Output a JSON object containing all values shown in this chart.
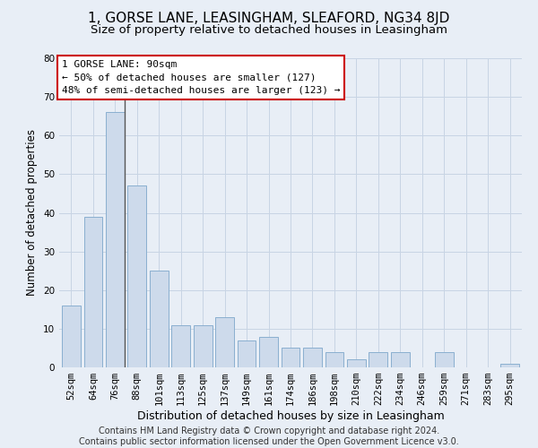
{
  "title": "1, GORSE LANE, LEASINGHAM, SLEAFORD, NG34 8JD",
  "subtitle": "Size of property relative to detached houses in Leasingham",
  "xlabel": "Distribution of detached houses by size in Leasingham",
  "ylabel": "Number of detached properties",
  "categories": [
    "52sqm",
    "64sqm",
    "76sqm",
    "88sqm",
    "101sqm",
    "113sqm",
    "125sqm",
    "137sqm",
    "149sqm",
    "161sqm",
    "174sqm",
    "186sqm",
    "198sqm",
    "210sqm",
    "222sqm",
    "234sqm",
    "246sqm",
    "259sqm",
    "271sqm",
    "283sqm",
    "295sqm"
  ],
  "values": [
    16,
    39,
    66,
    47,
    25,
    11,
    11,
    13,
    7,
    8,
    5,
    5,
    4,
    2,
    4,
    4,
    0,
    4,
    0,
    0,
    1
  ],
  "bar_color": "#cddaeb",
  "bar_edge_color": "#8aafd0",
  "highlight_index": 2,
  "highlight_line_color": "#555555",
  "annotation_text": "1 GORSE LANE: 90sqm\n← 50% of detached houses are smaller (127)\n48% of semi-detached houses are larger (123) →",
  "annotation_box_color": "#ffffff",
  "annotation_box_edgecolor": "#cc0000",
  "ylim": [
    0,
    80
  ],
  "yticks": [
    0,
    10,
    20,
    30,
    40,
    50,
    60,
    70,
    80
  ],
  "grid_color": "#c8d4e4",
  "background_color": "#e8eef6",
  "footer": "Contains HM Land Registry data © Crown copyright and database right 2024.\nContains public sector information licensed under the Open Government Licence v3.0.",
  "title_fontsize": 11,
  "subtitle_fontsize": 9.5,
  "xlabel_fontsize": 9,
  "ylabel_fontsize": 8.5,
  "tick_fontsize": 7.5,
  "footer_fontsize": 7,
  "annotation_fontsize": 8
}
